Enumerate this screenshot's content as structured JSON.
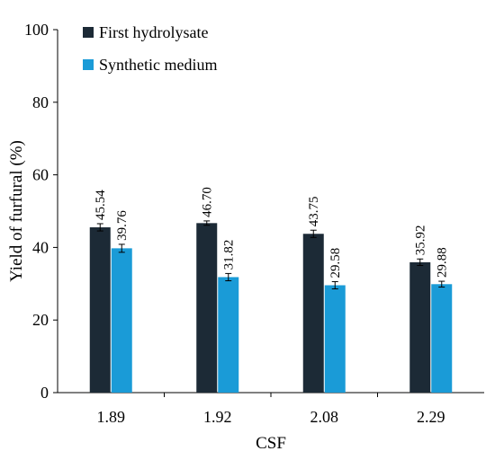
{
  "chart_data": {
    "type": "bar",
    "title": "",
    "xlabel": "CSF",
    "ylabel": "Yield of furfural (%)",
    "categories": [
      "1.89",
      "1.92",
      "2.08",
      "2.29"
    ],
    "series": [
      {
        "name": "First hydrolysate",
        "color": "#1c2a36",
        "values": [
          45.54,
          46.7,
          43.75,
          35.92
        ],
        "labels": [
          "45.54",
          "46.70",
          "43.75",
          "35.92"
        ],
        "errors": [
          1.0,
          0.6,
          1.0,
          0.9
        ]
      },
      {
        "name": "Synthetic medium",
        "color": "#1a9bd7",
        "values": [
          39.76,
          31.82,
          29.58,
          29.88
        ],
        "labels": [
          "39.76",
          "31.82",
          "29.58",
          "29.88"
        ],
        "errors": [
          1.1,
          1.0,
          1.0,
          0.8
        ]
      }
    ],
    "ylim": [
      0,
      100
    ],
    "yticks": [
      "0",
      "20",
      "40",
      "60",
      "80",
      "100"
    ],
    "error_bars": true,
    "grid": false,
    "legend_position": "top-left"
  }
}
